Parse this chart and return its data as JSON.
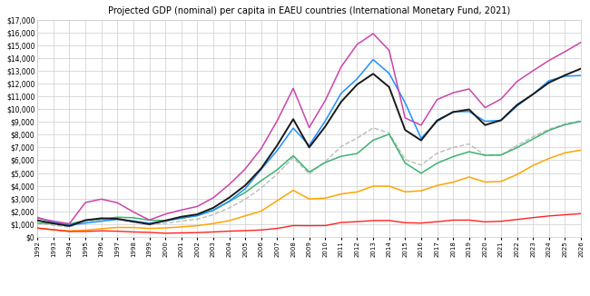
{
  "title": "Projected GDP (nominal) per capita in EAEU countries (International Monetary Fund, 2021)",
  "years": [
    1992,
    1993,
    1994,
    1995,
    1996,
    1997,
    1998,
    1999,
    2000,
    2001,
    2002,
    2003,
    2004,
    2005,
    2006,
    2007,
    2008,
    2009,
    2010,
    2011,
    2012,
    2013,
    2014,
    2015,
    2016,
    2017,
    2018,
    2019,
    2020,
    2021,
    2022,
    2023,
    2024,
    2025,
    2026
  ],
  "armenia": [
    660,
    556,
    459,
    520,
    629,
    734,
    728,
    656,
    694,
    775,
    869,
    1042,
    1263,
    1643,
    2012,
    2836,
    3639,
    2970,
    3027,
    3356,
    3517,
    3970,
    3970,
    3524,
    3606,
    4024,
    4278,
    4689,
    4290,
    4339,
    4882,
    5593,
    6139,
    6581,
    6795
  ],
  "belarus": [
    1075,
    1058,
    1006,
    1273,
    1398,
    1535,
    1494,
    1303,
    1272,
    1438,
    1673,
    2098,
    2760,
    3479,
    4395,
    5261,
    6358,
    5075,
    5820,
    6313,
    6524,
    7576,
    8040,
    5782,
    4981,
    5765,
    6281,
    6665,
    6392,
    6411,
    6991,
    7664,
    8342,
    8789,
    9041
  ],
  "kazakhstan": [
    1527,
    1136,
    923,
    1074,
    1224,
    1371,
    1246,
    1063,
    1229,
    1492,
    1654,
    2069,
    2799,
    3771,
    5292,
    6772,
    8514,
    7165,
    9070,
    11247,
    12387,
    13890,
    12807,
    10509,
    7715,
    9031,
    9815,
    9812,
    9056,
    9122,
    10248,
    11182,
    12237,
    12585,
    12640
  ],
  "kyrgyzstan": [
    697,
    550,
    415,
    422,
    467,
    440,
    380,
    347,
    280,
    309,
    328,
    381,
    441,
    483,
    534,
    657,
    879,
    870,
    879,
    1124,
    1186,
    1272,
    1278,
    1103,
    1077,
    1182,
    1309,
    1309,
    1173,
    1217,
    1357,
    1504,
    1633,
    1727,
    1812
  ],
  "russia": [
    1470,
    1222,
    1022,
    2688,
    2952,
    2669,
    1948,
    1317,
    1776,
    2100,
    2378,
    3061,
    4102,
    5323,
    6920,
    9101,
    11635,
    8563,
    10675,
    13324,
    15077,
    15921,
    14611,
    9313,
    8748,
    10751,
    11289,
    11585,
    10126,
    10795,
    12172,
    13016,
    13819,
    14513,
    15238
  ],
  "eaeu": [
    1290,
    1045,
    847,
    1303,
    1451,
    1409,
    1190,
    986,
    1268,
    1570,
    1760,
    2274,
    3072,
    4032,
    5365,
    7173,
    9218,
    7007,
    8636,
    10584,
    11935,
    12775,
    11736,
    8372,
    7557,
    9118,
    9771,
    9982,
    8756,
    9139,
    10336,
    11172,
    12084,
    12665,
    13181
  ],
  "avg5": [
    1086,
    904,
    765,
    1210,
    1334,
    1350,
    1159,
    977,
    1060,
    1235,
    1380,
    1730,
    2273,
    2940,
    3831,
    4925,
    6205,
    4929,
    5894,
    7073,
    7738,
    8533,
    8141,
    6046,
    5625,
    6551,
    6994,
    7274,
    6379,
    6397,
    7150,
    7832,
    8434,
    8839,
    9105
  ],
  "colors": {
    "armenia": "#FFA500",
    "belarus": "#3CB371",
    "kazakhstan": "#1E90FF",
    "kyrgyzstan": "#FF2222",
    "russia": "#CC44AA",
    "eaeu": "#1a1a1a",
    "avg5": "#BBBBBB"
  },
  "ylim": [
    0,
    17000
  ],
  "yticks": [
    0,
    1000,
    2000,
    3000,
    4000,
    5000,
    6000,
    7000,
    8000,
    9000,
    10000,
    11000,
    12000,
    13000,
    14000,
    15000,
    16000,
    17000
  ],
  "background": "#FFFFFF",
  "grid_color": "#CCCCCC"
}
